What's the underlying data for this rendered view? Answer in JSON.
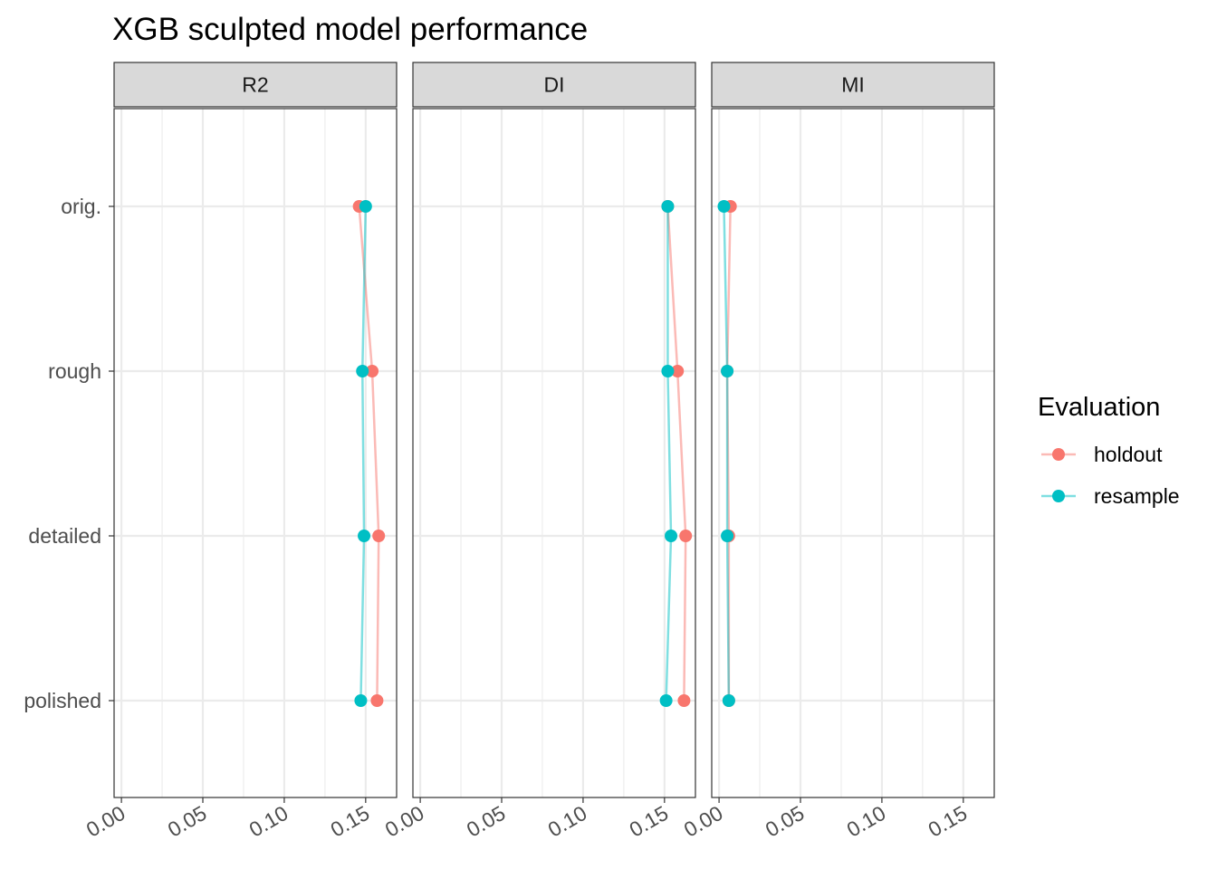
{
  "chart_data": {
    "type": "line",
    "title": "XGB sculpted model performance",
    "panels": [
      "R2",
      "DI",
      "MI"
    ],
    "categories": [
      "orig.",
      "rough",
      "detailed",
      "polished"
    ],
    "x_ticks": [
      0.0,
      0.05,
      0.1,
      0.15
    ],
    "x_tick_labels": [
      "0.00",
      "0.05",
      "0.10",
      "0.15"
    ],
    "xlim": [
      -0.0045,
      0.169
    ],
    "grid": true,
    "legend": {
      "title": "Evaluation",
      "placement": "right"
    },
    "series": [
      {
        "name": "holdout",
        "color": "#F8766D",
        "values": {
          "R2": [
            0.146,
            0.154,
            0.158,
            0.157
          ],
          "DI": [
            0.152,
            0.158,
            0.163,
            0.162
          ],
          "MI": [
            0.007,
            0.005,
            0.006,
            0.006
          ]
        }
      },
      {
        "name": "resample",
        "color": "#00BFC4",
        "values": {
          "R2": [
            0.15,
            0.148,
            0.149,
            0.147
          ],
          "DI": [
            0.152,
            0.152,
            0.154,
            0.151
          ],
          "MI": [
            0.003,
            0.005,
            0.005,
            0.006
          ]
        }
      }
    ]
  }
}
